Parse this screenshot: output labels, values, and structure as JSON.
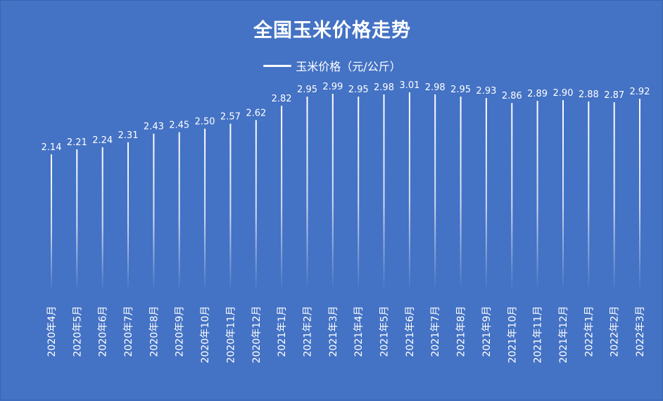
{
  "chart_data": {
    "type": "bar",
    "title": "全国玉米价格走势",
    "legend_position": "top",
    "grid": false,
    "series": [
      {
        "name": "玉米价格（元/公斤）",
        "color": "#ffffff",
        "values": [
          2.14,
          2.21,
          2.24,
          2.31,
          2.43,
          2.45,
          2.5,
          2.57,
          2.62,
          2.82,
          2.95,
          2.99,
          2.95,
          2.98,
          3.01,
          2.98,
          2.95,
          2.93,
          2.86,
          2.89,
          2.9,
          2.88,
          2.87,
          2.92
        ],
        "labels": [
          "2.14",
          "2.21",
          "2.24",
          "2.31",
          "2.43",
          "2.45",
          "2.50",
          "2.57",
          "2.62",
          "2.82",
          "2.95",
          "2.99",
          "2.95",
          "2.98",
          "3.01",
          "2.98",
          "2.95",
          "2.93",
          "2.86",
          "2.89",
          "2.90",
          "2.88",
          "2.87",
          "2.92"
        ]
      }
    ],
    "categories": [
      "2020年4月",
      "2020年5月",
      "2020年6月",
      "2020年7月",
      "2020年8月",
      "2020年9月",
      "2020年10月",
      "2020年11月",
      "2020年12月",
      "2021年1月",
      "2021年2月",
      "2021年3月",
      "2021年4月",
      "2021年5月",
      "2021年6月",
      "2021年7月",
      "2021年8月",
      "2021年9月",
      "2021年10月",
      "2021年11月",
      "2021年12月",
      "2022年1月",
      "2022年2月",
      "2022年3月"
    ],
    "background": "#4472C4",
    "text_color": "#ffffff"
  }
}
